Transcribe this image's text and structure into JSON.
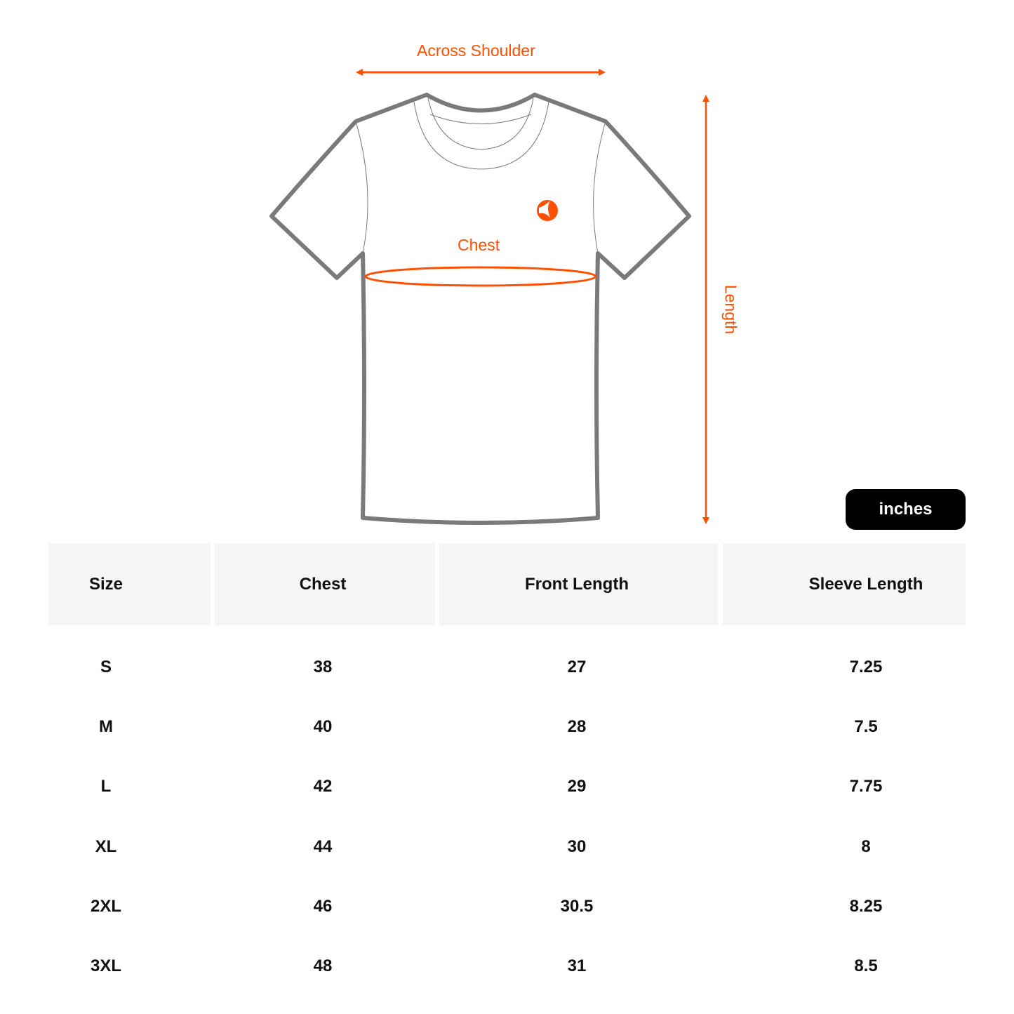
{
  "diagram": {
    "labels": {
      "across_shoulder": "Across Shoulder",
      "chest": "Chest",
      "length": "Length"
    },
    "accent_color": "#ff5000",
    "outline_color": "#7a7a7a",
    "logo": "brand-logo-orange-circle"
  },
  "unit_badge": "inches",
  "table": {
    "headers": [
      "Size",
      "Chest",
      "Front Length",
      "Sleeve Length"
    ],
    "rows": [
      [
        "S",
        "38",
        "27",
        "7.25"
      ],
      [
        "M",
        "40",
        "28",
        "7.5"
      ],
      [
        "L",
        "42",
        "29",
        "7.75"
      ],
      [
        "XL",
        "44",
        "30",
        "8"
      ],
      [
        "2XL",
        "46",
        "30.5",
        "8.25"
      ],
      [
        "3XL",
        "48",
        "31",
        "8.5"
      ]
    ]
  }
}
